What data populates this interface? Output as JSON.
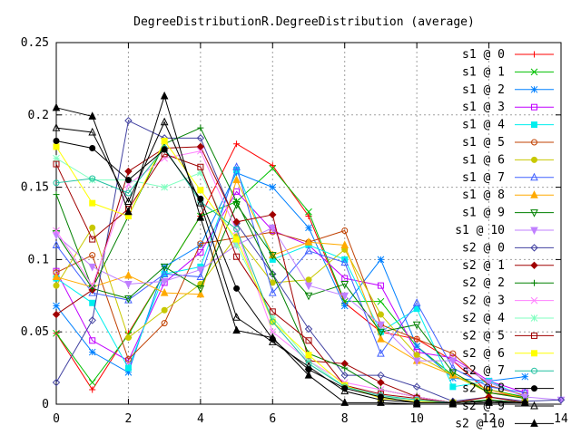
{
  "chart_data": {
    "type": "line",
    "title": "DegreeDistributionR.DegreeDistribution (average)",
    "xlabel": "",
    "ylabel": "",
    "xlim": [
      0,
      14
    ],
    "ylim": [
      0,
      0.25
    ],
    "grid": true,
    "legend_position": "top-right",
    "x_ticks": [
      "0",
      "2",
      "4",
      "6",
      "8",
      "10",
      "12",
      "14"
    ],
    "y_ticks": [
      "0",
      "0.05",
      "0.1",
      "0.15",
      "0.2",
      "0.25"
    ],
    "series": [
      {
        "name": "s1 @ 0",
        "color": "#ff0000",
        "marker": "plus",
        "x": [
          0,
          1,
          2,
          3,
          4,
          5,
          6,
          7,
          8,
          9,
          10,
          11,
          12,
          13
        ],
        "y": [
          0.049,
          0.01,
          0.049,
          0.09,
          0.13,
          0.18,
          0.165,
          0.13,
          0.07,
          0.05,
          0.045,
          0.03,
          0.008,
          0.005
        ]
      },
      {
        "name": "s1 @ 1",
        "color": "#00c000",
        "marker": "cross",
        "x": [
          0,
          1,
          2,
          3,
          4,
          5,
          6,
          7,
          8,
          9,
          10,
          11,
          12,
          13
        ],
        "y": [
          0.049,
          0.015,
          0.048,
          0.09,
          0.13,
          0.14,
          0.163,
          0.133,
          0.071,
          0.071,
          0.04,
          0.02,
          0.01,
          0.005
        ]
      },
      {
        "name": "s1 @ 2",
        "color": "#0080ff",
        "marker": "star",
        "x": [
          0,
          1,
          2,
          3,
          4,
          5,
          6,
          7,
          8,
          9,
          10,
          11,
          12,
          13
        ],
        "y": [
          0.068,
          0.036,
          0.022,
          0.095,
          0.11,
          0.16,
          0.15,
          0.122,
          0.068,
          0.1,
          0.04,
          0.018,
          0.016,
          0.019
        ]
      },
      {
        "name": "s1 @ 3",
        "color": "#c000ff",
        "marker": "square",
        "x": [
          0,
          1,
          2,
          3,
          4,
          5,
          6,
          7,
          8,
          9,
          10,
          11,
          12,
          13
        ],
        "y": [
          0.092,
          0.044,
          0.03,
          0.084,
          0.105,
          0.147,
          0.12,
          0.11,
          0.087,
          0.082,
          0.036,
          0.032,
          0.016,
          0.008
        ]
      },
      {
        "name": "s1 @ 4",
        "color": "#00eeee",
        "marker": "filled-square",
        "x": [
          0,
          1,
          2,
          3,
          4,
          5,
          6,
          7,
          8,
          9,
          10,
          11,
          12,
          13
        ],
        "y": [
          0.087,
          0.07,
          0.025,
          0.09,
          0.095,
          0.162,
          0.1,
          0.11,
          0.1,
          0.05,
          0.066,
          0.012,
          0.016,
          0.005
        ]
      },
      {
        "name": "s1 @ 5",
        "color": "#c04000",
        "marker": "circle",
        "x": [
          0,
          1,
          2,
          3,
          4,
          5,
          6,
          7,
          8,
          9,
          10,
          11,
          12,
          13
        ],
        "y": [
          0.091,
          0.103,
          0.031,
          0.056,
          0.111,
          0.115,
          0.119,
          0.112,
          0.12,
          0.055,
          0.045,
          0.035,
          0.013,
          0.006
        ]
      },
      {
        "name": "s1 @ 6",
        "color": "#c8c800",
        "marker": "filled-circle",
        "x": [
          0,
          1,
          2,
          3,
          4,
          5,
          6,
          7,
          8,
          9,
          10,
          11,
          12,
          13
        ],
        "y": [
          0.082,
          0.122,
          0.046,
          0.065,
          0.083,
          0.116,
          0.084,
          0.086,
          0.107,
          0.062,
          0.034,
          0.02,
          0.008,
          0.004
        ]
      },
      {
        "name": "s1 @ 7",
        "color": "#4060ff",
        "marker": "triangle",
        "x": [
          0,
          1,
          2,
          3,
          4,
          5,
          6,
          7,
          8,
          9,
          10,
          11,
          12,
          13
        ],
        "y": [
          0.11,
          0.077,
          0.072,
          0.09,
          0.088,
          0.164,
          0.077,
          0.106,
          0.098,
          0.035,
          0.07,
          0.025,
          0.012,
          0.008
        ]
      },
      {
        "name": "s1 @ 8",
        "color": "#ffaa00",
        "marker": "filled-triangle",
        "x": [
          0,
          1,
          2,
          3,
          4,
          5,
          6,
          7,
          8,
          9,
          10,
          11,
          12,
          13
        ],
        "y": [
          0.088,
          0.081,
          0.089,
          0.077,
          0.076,
          0.155,
          0.103,
          0.112,
          0.11,
          0.045,
          0.03,
          0.02,
          0.01,
          0.004
        ]
      },
      {
        "name": "s1 @ 9",
        "color": "#008000",
        "marker": "inverted-triangle",
        "x": [
          0,
          1,
          2,
          3,
          4,
          5,
          6,
          7,
          8,
          9,
          10,
          11,
          12,
          13
        ],
        "y": [
          0.118,
          0.08,
          0.073,
          0.095,
          0.08,
          0.138,
          0.103,
          0.075,
          0.083,
          0.05,
          0.055,
          0.022,
          0.008,
          0.004
        ]
      },
      {
        "name": "s1 @ 10",
        "color": "#c080ff",
        "marker": "filled-inverted-triangle",
        "x": [
          0,
          1,
          2,
          3,
          4,
          5,
          6,
          7,
          8,
          9,
          10,
          11,
          12,
          13,
          14
        ],
        "y": [
          0.117,
          0.095,
          0.083,
          0.085,
          0.093,
          0.11,
          0.122,
          0.082,
          0.075,
          0.055,
          0.03,
          0.03,
          0.015,
          0.005,
          0.003
        ]
      },
      {
        "name": "s2 @ 0",
        "color": "#4040a0",
        "marker": "diamond",
        "x": [
          0,
          1,
          2,
          3,
          4,
          5,
          6,
          7,
          8,
          9,
          10,
          11,
          12,
          13,
          14
        ],
        "y": [
          0.015,
          0.058,
          0.196,
          0.184,
          0.184,
          0.125,
          0.09,
          0.052,
          0.02,
          0.02,
          0.012,
          0.002,
          0.005,
          0.002,
          0.003
        ]
      },
      {
        "name": "s2 @ 1",
        "color": "#a00000",
        "marker": "filled-diamond",
        "x": [
          0,
          1,
          2,
          3,
          4,
          5,
          6,
          7,
          8,
          9,
          10,
          11,
          12,
          13
        ],
        "y": [
          0.062,
          0.079,
          0.161,
          0.177,
          0.178,
          0.126,
          0.131,
          0.03,
          0.028,
          0.015,
          0.005,
          0.001,
          0.005,
          0.001
        ]
      },
      {
        "name": "s2 @ 2",
        "color": "#008000",
        "marker": "plus",
        "x": [
          0,
          1,
          2,
          3,
          4,
          5,
          6,
          7,
          8,
          9,
          10,
          11,
          12,
          13
        ],
        "y": [
          0.145,
          0.08,
          0.13,
          0.18,
          0.191,
          0.14,
          0.09,
          0.035,
          0.025,
          0.01,
          0.005,
          0.001,
          0.003,
          0.001
        ]
      },
      {
        "name": "s2 @ 3",
        "color": "#ff80ff",
        "marker": "cross",
        "x": [
          0,
          1,
          2,
          3,
          4,
          5,
          6,
          7,
          8,
          9,
          10,
          11,
          12,
          13
        ],
        "y": [
          0.12,
          0.082,
          0.152,
          0.17,
          0.175,
          0.12,
          0.05,
          0.03,
          0.015,
          0.01,
          0.005,
          0.001,
          0.002,
          0.001
        ]
      },
      {
        "name": "s2 @ 4",
        "color": "#80ffc0",
        "marker": "star",
        "x": [
          0,
          1,
          2,
          3,
          4,
          5,
          6,
          7,
          8,
          9,
          10,
          11,
          12,
          13
        ],
        "y": [
          0.17,
          0.155,
          0.155,
          0.15,
          0.16,
          0.11,
          0.06,
          0.03,
          0.012,
          0.005,
          0.003,
          0.001,
          0.002,
          0.001
        ]
      },
      {
        "name": "s2 @ 5",
        "color": "#a00000",
        "marker": "square",
        "x": [
          0,
          1,
          2,
          3,
          4,
          5,
          6,
          7,
          8,
          9,
          10,
          11,
          12,
          13
        ],
        "y": [
          0.166,
          0.114,
          0.135,
          0.173,
          0.164,
          0.102,
          0.064,
          0.044,
          0.013,
          0.007,
          0.004,
          0.001,
          0.002,
          0.001
        ]
      },
      {
        "name": "s2 @ 6",
        "color": "#ffff00",
        "marker": "filled-square",
        "x": [
          0,
          1,
          2,
          3,
          4,
          5,
          6,
          7,
          8,
          9,
          10,
          11,
          12,
          13
        ],
        "y": [
          0.178,
          0.139,
          0.13,
          0.182,
          0.148,
          0.114,
          0.057,
          0.034,
          0.013,
          0.004,
          0.002,
          0.001,
          0.002,
          0.001
        ]
      },
      {
        "name": "s2 @ 7",
        "color": "#20c0a0",
        "marker": "circle",
        "x": [
          0,
          1,
          2,
          3,
          4,
          5,
          6,
          7,
          8,
          9,
          10,
          11,
          12,
          13
        ],
        "y": [
          0.153,
          0.156,
          0.146,
          0.177,
          0.14,
          0.121,
          0.057,
          0.028,
          0.012,
          0.006,
          0.003,
          0.001,
          0.002,
          0.001
        ]
      },
      {
        "name": "s2 @ 8",
        "color": "#000000",
        "marker": "filled-circle",
        "x": [
          0,
          1,
          2,
          3,
          4,
          5,
          6,
          7,
          8,
          9,
          10,
          11,
          12,
          13
        ],
        "y": [
          0.182,
          0.177,
          0.155,
          0.176,
          0.142,
          0.08,
          0.045,
          0.024,
          0.011,
          0.005,
          0.001,
          0.001,
          0.002,
          0.001
        ]
      },
      {
        "name": "s2 @ 9",
        "color": "#000000",
        "marker": "triangle",
        "x": [
          0,
          1,
          2,
          3,
          4,
          5,
          6,
          7,
          8,
          9,
          10,
          11,
          12,
          13
        ],
        "y": [
          0.191,
          0.188,
          0.14,
          0.195,
          0.139,
          0.06,
          0.043,
          0.026,
          0.009,
          0.003,
          0.001,
          0.001,
          0.002,
          0.001
        ]
      },
      {
        "name": "s2 @ 10",
        "color": "#000000",
        "marker": "filled-triangle",
        "x": [
          0,
          1,
          2,
          3,
          4,
          5,
          6,
          7,
          8,
          9,
          10,
          11,
          12,
          13
        ],
        "y": [
          0.205,
          0.199,
          0.133,
          0.213,
          0.129,
          0.051,
          0.046,
          0.02,
          0.001,
          0.001,
          0.0,
          0.0,
          0.001,
          0.001
        ]
      }
    ]
  }
}
